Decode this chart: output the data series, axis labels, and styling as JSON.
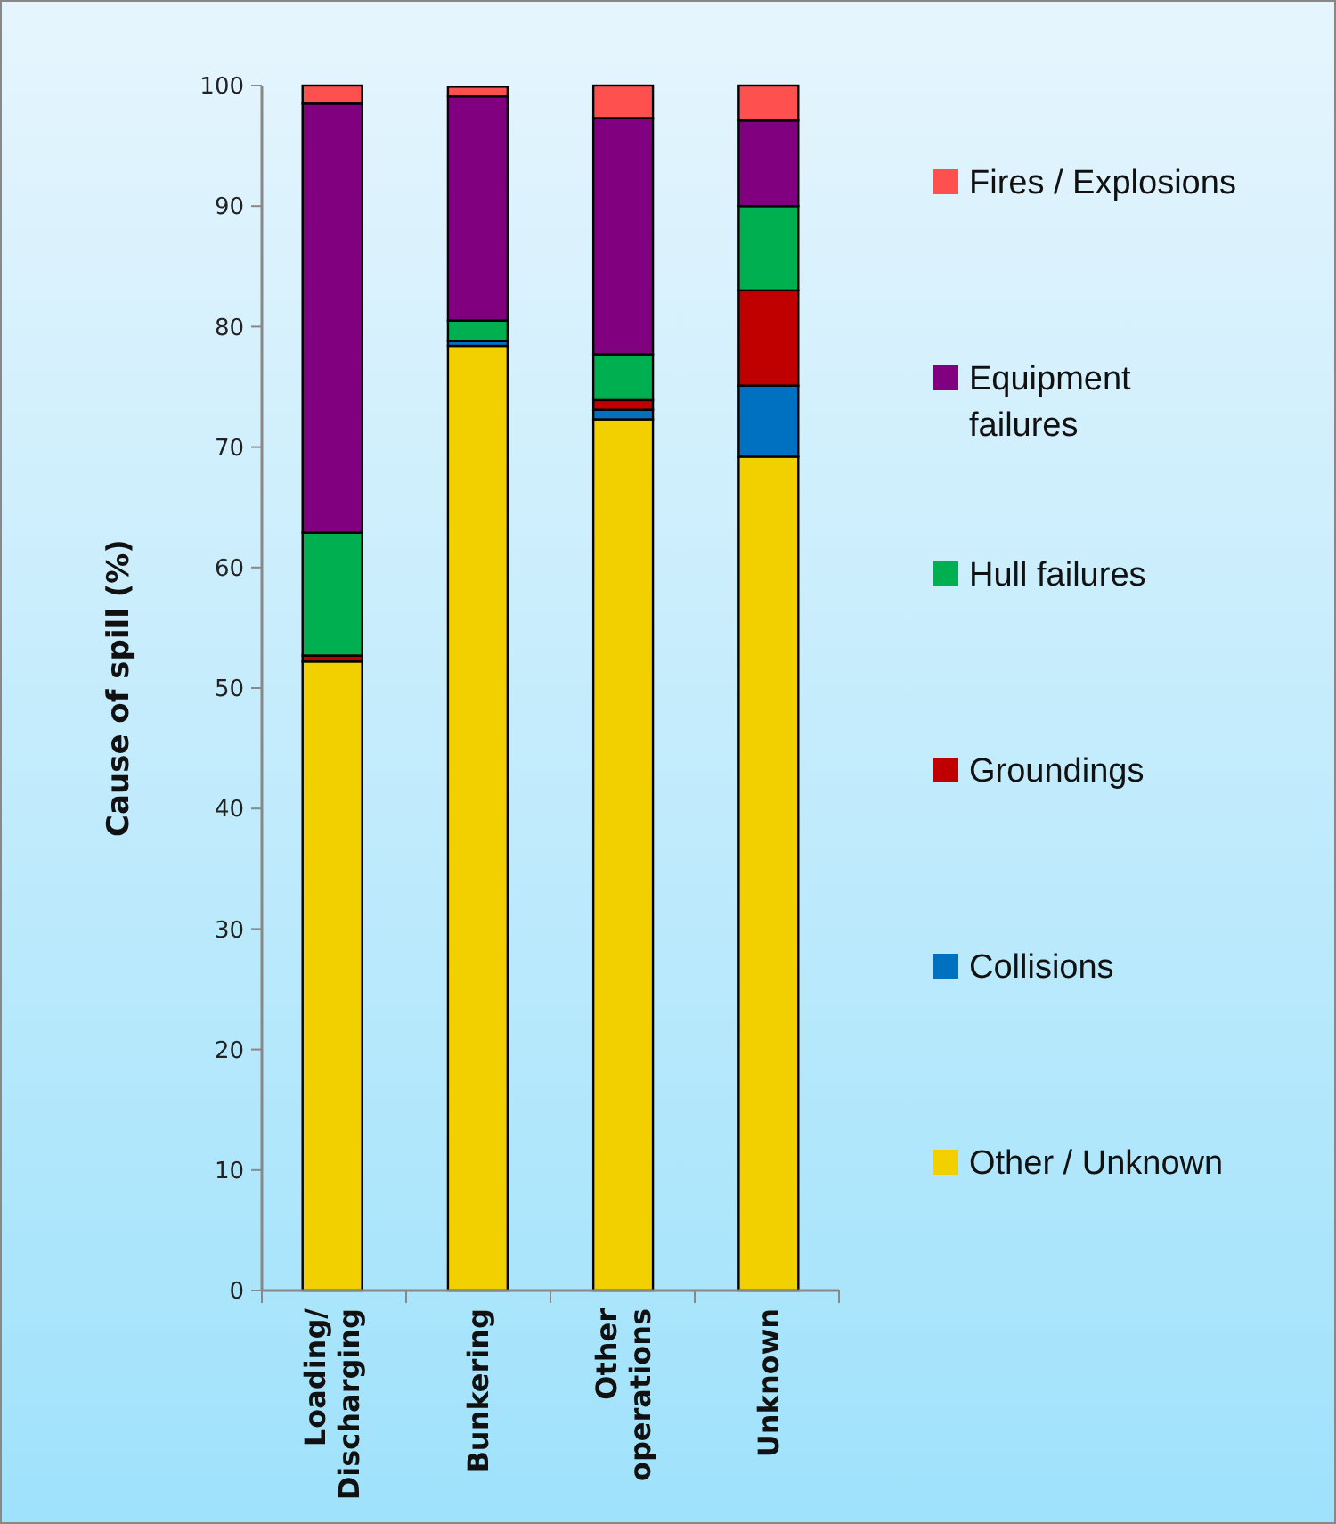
{
  "chart_data": {
    "type": "bar",
    "stacked": true,
    "ylabel": "Cause of spill (%)",
    "categories": [
      "Loading/ Discharging",
      "Bunkering",
      "Other operations",
      "Unknown"
    ],
    "series": [
      {
        "name": "Other / Unknown",
        "color": "#f2d000",
        "values": [
          52.2,
          78.4,
          72.3,
          69.2
        ]
      },
      {
        "name": "Collisions",
        "color": "#0070c0",
        "values": [
          null,
          0.4,
          0.8,
          5.9
        ]
      },
      {
        "name": "Groundings",
        "color": "#c00000",
        "values": [
          0.5,
          null,
          0.8,
          7.9
        ]
      },
      {
        "name": "Hull failures",
        "color": "#00b050",
        "values": [
          10.2,
          1.7,
          3.8,
          7.0
        ]
      },
      {
        "name": "Equipment failures",
        "color": "#800080",
        "values": [
          35.6,
          18.6,
          19.6,
          7.1
        ]
      },
      {
        "name": "Fires / Explosions",
        "color": "#ff5050",
        "values": [
          1.5,
          0.8,
          2.7,
          2.9
        ]
      }
    ],
    "ylim": [
      0,
      100
    ],
    "yticks": [
      0,
      10,
      20,
      30,
      40,
      50,
      60,
      70,
      80,
      90,
      100
    ],
    "legend": "right",
    "grid": false
  }
}
